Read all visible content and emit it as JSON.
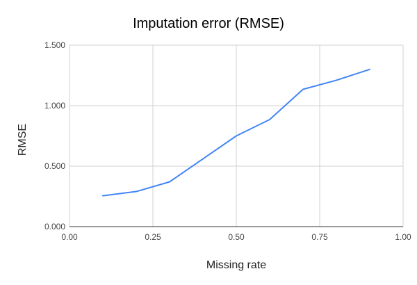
{
  "chart_data": {
    "type": "line",
    "title": "Imputation error (RMSE)",
    "xlabel": "Missing rate",
    "ylabel": "RMSE",
    "xlim": [
      0.0,
      1.0
    ],
    "ylim": [
      0.0,
      1.5
    ],
    "x_ticks": [
      "0.00",
      "0.25",
      "0.50",
      "0.75",
      "1.00"
    ],
    "y_ticks": [
      "0.000",
      "0.500",
      "1.000",
      "1.500"
    ],
    "grid": true,
    "series": [
      {
        "color": "#4285f4",
        "x": [
          0.1,
          0.2,
          0.3,
          0.4,
          0.5,
          0.6,
          0.7,
          0.8,
          0.9
        ],
        "y": [
          0.255,
          0.29,
          0.37,
          0.56,
          0.75,
          0.885,
          1.135,
          1.21,
          1.3
        ]
      }
    ]
  }
}
